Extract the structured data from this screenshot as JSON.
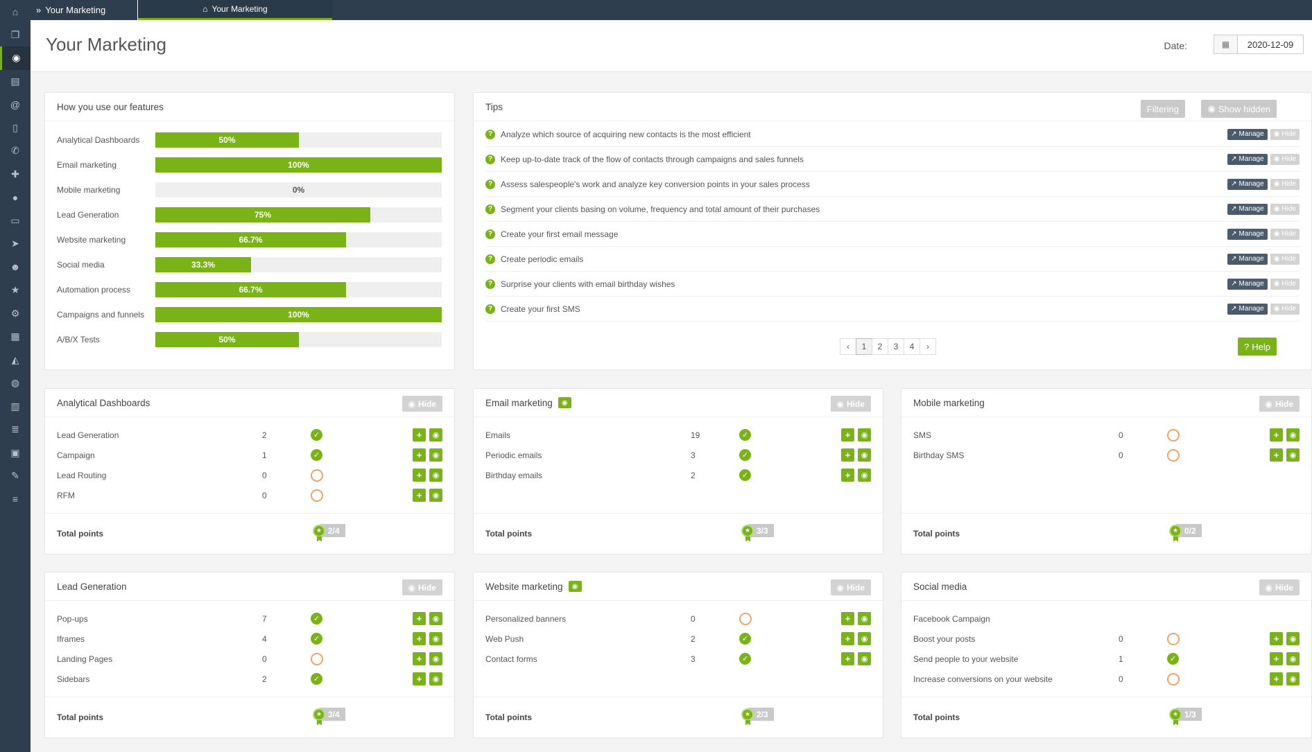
{
  "sidebar": {
    "icons": [
      "home-icon",
      "copy-icon",
      "eye-icon",
      "contact-card-icon",
      "at-icon",
      "mobile-icon",
      "phone-icon",
      "user-plus-icon",
      "comment-icon",
      "laptop-icon",
      "bullhorn-icon",
      "users-icon",
      "star-icon",
      "gears-icon",
      "grid-icon",
      "area-chart-icon",
      "globe-icon",
      "calendar-icon",
      "database-icon",
      "files-icon",
      "wrench-icon",
      "sliders-icon"
    ],
    "glyphs": [
      "⌂",
      "❐",
      "◉",
      "▤",
      "@",
      "▯",
      "✆",
      "✚",
      "●",
      "▭",
      "➤",
      "☻",
      "★",
      "⚙",
      "▦",
      "◭",
      "◍",
      "▥",
      "≣",
      "▣",
      "✎",
      "≡"
    ],
    "active_index": 2
  },
  "topbar": {
    "brand": "Your Marketing",
    "tab": "Your Marketing"
  },
  "header": {
    "title": "Your Marketing",
    "date_label": "Date:",
    "date_value": "2020-12-09"
  },
  "features": {
    "title": "How you use our features",
    "rows": [
      {
        "label": "Analytical Dashboards",
        "percent": 50,
        "text": "50%"
      },
      {
        "label": "Email marketing",
        "percent": 100,
        "text": "100%"
      },
      {
        "label": "Mobile marketing",
        "percent": 0,
        "text": "0%"
      },
      {
        "label": "Lead Generation",
        "percent": 75,
        "text": "75%"
      },
      {
        "label": "Website marketing",
        "percent": 66.7,
        "text": "66.7%"
      },
      {
        "label": "Social media",
        "percent": 33.3,
        "text": "33.3%"
      },
      {
        "label": "Automation process",
        "percent": 66.7,
        "text": "66.7%"
      },
      {
        "label": "Campaigns and funnels",
        "percent": 100,
        "text": "100%"
      },
      {
        "label": "A/B/X Tests",
        "percent": 50,
        "text": "50%"
      }
    ]
  },
  "tips": {
    "title": "Tips",
    "filtering_label": "Filtering",
    "show_hidden_label": "Show hidden",
    "manage_label": "Manage",
    "hide_label": "Hide",
    "items": [
      "Analyze which source of acquiring new contacts is the most efficient",
      "Keep up-to-date track of the flow of contacts through campaigns and sales funnels",
      "Assess salespeople's work and analyze key conversion points in your sales process",
      "Segment your clients basing on volume, frequency and total amount of their purchases",
      "Create your first email message",
      "Create periodic emails",
      "Surprise your clients with email birthday wishes",
      "Create your first SMS"
    ],
    "pages": [
      "1",
      "2",
      "3",
      "4"
    ],
    "current_page": "1",
    "help_label": "Help"
  },
  "cards": [
    {
      "title": "Analytical Dashboards",
      "eye_badge": false,
      "hide_label": "Hide",
      "total_label": "Total points",
      "points": "2/4",
      "items": [
        {
          "name": "Lead Generation",
          "value": "2",
          "done": true,
          "actions": true
        },
        {
          "name": "Campaign",
          "value": "1",
          "done": true,
          "actions": true
        },
        {
          "name": "Lead Routing",
          "value": "0",
          "done": false,
          "actions": true
        },
        {
          "name": "RFM",
          "value": "0",
          "done": false,
          "actions": true
        }
      ]
    },
    {
      "title": "Email marketing",
      "eye_badge": true,
      "hide_label": "Hide",
      "total_label": "Total points",
      "points": "3/3",
      "items": [
        {
          "name": "Emails",
          "value": "19",
          "done": true,
          "actions": true
        },
        {
          "name": "Periodic emails",
          "value": "3",
          "done": true,
          "actions": true
        },
        {
          "name": "Birthday emails",
          "value": "2",
          "done": true,
          "actions": true
        }
      ]
    },
    {
      "title": "Mobile marketing",
      "eye_badge": false,
      "hide_label": "Hide",
      "total_label": "Total points",
      "points": "0/2",
      "items": [
        {
          "name": "SMS",
          "value": "0",
          "done": false,
          "actions": true
        },
        {
          "name": "Birthday SMS",
          "value": "0",
          "done": false,
          "actions": true
        }
      ]
    },
    {
      "title": "Lead Generation",
      "eye_badge": false,
      "hide_label": "Hide",
      "total_label": "Total points",
      "points": "3/4",
      "items": [
        {
          "name": "Pop-ups",
          "value": "7",
          "done": true,
          "actions": true
        },
        {
          "name": "Iframes",
          "value": "4",
          "done": true,
          "actions": true
        },
        {
          "name": "Landing Pages",
          "value": "0",
          "done": false,
          "actions": true
        },
        {
          "name": "Sidebars",
          "value": "2",
          "done": true,
          "actions": true
        }
      ]
    },
    {
      "title": "Website marketing",
      "eye_badge": true,
      "hide_label": "Hide",
      "total_label": "Total points",
      "points": "2/3",
      "items": [
        {
          "name": "Personalized banners",
          "value": "0",
          "done": false,
          "actions": true
        },
        {
          "name": "Web Push",
          "value": "2",
          "done": true,
          "actions": true
        },
        {
          "name": "Contact forms",
          "value": "3",
          "done": true,
          "actions": true
        }
      ]
    },
    {
      "title": "Social media",
      "eye_badge": false,
      "hide_label": "Hide",
      "total_label": "Total points",
      "points": "1/3",
      "items": [
        {
          "name": "Facebook Campaign",
          "value": "",
          "done": null,
          "actions": false
        },
        {
          "name": "Boost your posts",
          "value": "0",
          "done": false,
          "actions": true
        },
        {
          "name": "Send people to your website",
          "value": "1",
          "done": true,
          "actions": true
        },
        {
          "name": "Increase conversions on your website",
          "value": "0",
          "done": false,
          "actions": true
        }
      ]
    }
  ]
}
